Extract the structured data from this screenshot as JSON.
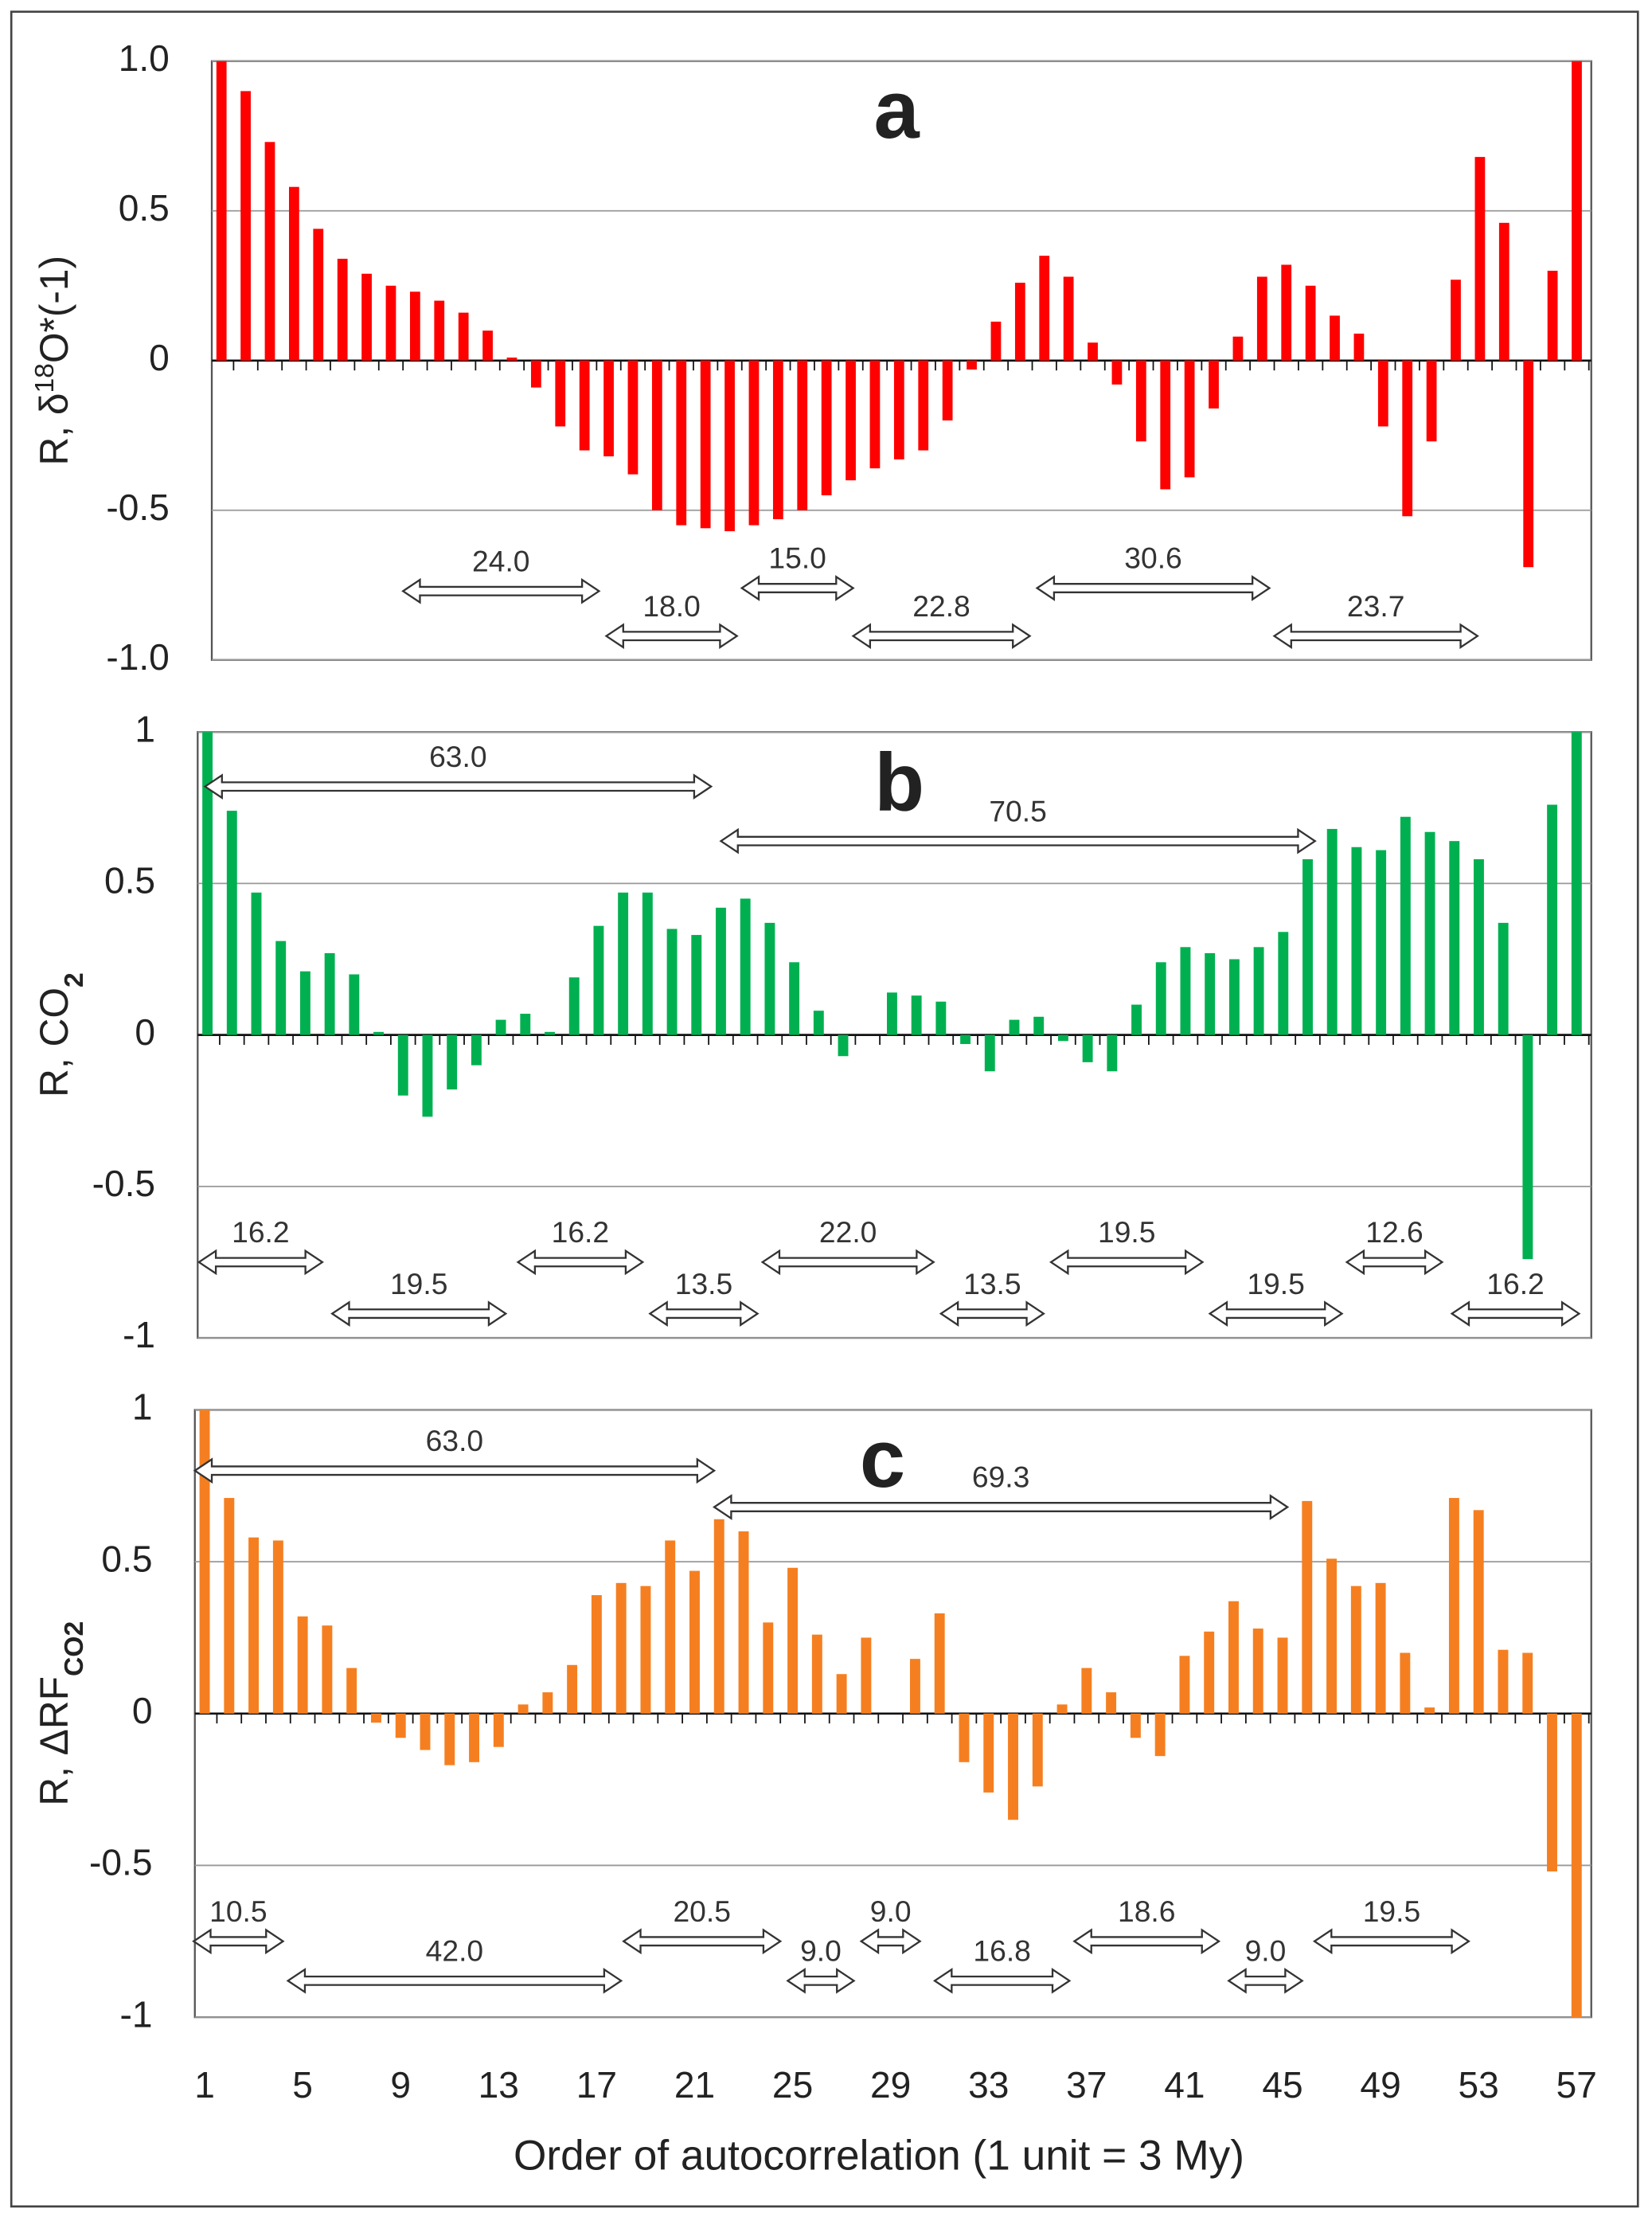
{
  "chart_data": [
    {
      "type": "bar",
      "label": "a",
      "color": "#ff0000",
      "ylabel": [
        "R, δ",
        "18",
        "O*(-1)"
      ],
      "ylabel_shift": [
        "none",
        "super",
        "none"
      ],
      "x": [
        1,
        2,
        3,
        4,
        5,
        6,
        7,
        8,
        9,
        10,
        11,
        12,
        13,
        14,
        15,
        16,
        17,
        18,
        19,
        20,
        21,
        22,
        23,
        24,
        25,
        26,
        27,
        28,
        29,
        30,
        31,
        32,
        33,
        34,
        35,
        36,
        37,
        38,
        39,
        40,
        41,
        42,
        43,
        44,
        45,
        46,
        47,
        48,
        49,
        50,
        51,
        52,
        53,
        54,
        55,
        56,
        57
      ],
      "values": [
        1.0,
        0.9,
        0.73,
        0.58,
        0.44,
        0.34,
        0.29,
        0.25,
        0.23,
        0.2,
        0.16,
        0.1,
        0.01,
        -0.09,
        -0.22,
        -0.3,
        -0.32,
        -0.38,
        -0.5,
        -0.55,
        -0.56,
        -0.57,
        -0.55,
        -0.53,
        -0.5,
        -0.45,
        -0.4,
        -0.36,
        -0.33,
        -0.3,
        -0.2,
        -0.03,
        0.13,
        0.26,
        0.35,
        0.28,
        0.06,
        -0.08,
        -0.27,
        -0.43,
        -0.39,
        -0.16,
        0.08,
        0.28,
        0.32,
        0.25,
        0.15,
        0.09,
        -0.22,
        -0.52,
        -0.27,
        0.27,
        0.68,
        0.46,
        -0.69,
        0.3,
        1.0
      ],
      "xlim": [
        0.6,
        57.6
      ],
      "ylim": [
        -1,
        1
      ],
      "yticks": [
        {
          "value": 1,
          "label": "1.0"
        },
        0.5,
        0,
        -0.5,
        {
          "value": -1,
          "label": "-1.0"
        }
      ],
      "grid": true,
      "annotations": [
        {
          "text": "24.0",
          "x": [
            8.5,
            16.6
          ],
          "y": -0.77
        },
        {
          "text": "18.0",
          "x": [
            16.9,
            22.3
          ],
          "y": -0.92
        },
        {
          "text": "15.0",
          "x": [
            22.5,
            27.1
          ],
          "y": -0.76
        },
        {
          "text": "22.8",
          "x": [
            27.1,
            34.4
          ],
          "y": -0.92
        },
        {
          "text": "30.6",
          "x": [
            34.7,
            44.3
          ],
          "y": -0.76
        },
        {
          "text": "23.7",
          "x": [
            44.5,
            52.9
          ],
          "y": -0.92
        }
      ]
    },
    {
      "type": "bar",
      "label": "b",
      "color": "#00b050",
      "ylabel": [
        "R, CO",
        "2"
      ],
      "ylabel_shift": [
        "none",
        "sub"
      ],
      "x": [
        1,
        2,
        3,
        4,
        5,
        6,
        7,
        8,
        9,
        10,
        11,
        12,
        13,
        14,
        15,
        16,
        17,
        18,
        19,
        20,
        21,
        22,
        23,
        24,
        25,
        26,
        27,
        28,
        29,
        30,
        31,
        32,
        33,
        34,
        35,
        36,
        37,
        38,
        39,
        40,
        41,
        42,
        43,
        44,
        45,
        46,
        47,
        48,
        49,
        50,
        51,
        52,
        53,
        54,
        55,
        56,
        57
      ],
      "values": [
        1.0,
        0.74,
        0.47,
        0.31,
        0.21,
        0.27,
        0.2,
        0.01,
        -0.2,
        -0.27,
        -0.18,
        -0.1,
        0.05,
        0.07,
        0.01,
        0.19,
        0.36,
        0.47,
        0.47,
        0.35,
        0.33,
        0.42,
        0.45,
        0.37,
        0.24,
        0.08,
        -0.07,
        0,
        0.14,
        0.13,
        0.11,
        -0.03,
        -0.12,
        0.05,
        0.06,
        -0.02,
        -0.09,
        -0.12,
        0.1,
        0.24,
        0.29,
        0.27,
        0.25,
        0.29,
        0.34,
        0.58,
        0.68,
        0.62,
        0.61,
        0.72,
        0.67,
        0.64,
        0.58,
        0.37,
        -0.74,
        0.76,
        1.0
      ],
      "xlim": [
        0.6,
        57.6
      ],
      "ylim": [
        -1,
        1
      ],
      "yticks": [
        1,
        0.5,
        0,
        -0.5,
        -1
      ],
      "grid": true,
      "annotations": [
        {
          "text": "63.0",
          "x": [
            0.9,
            21.6
          ],
          "y": 0.82
        },
        {
          "text": "70.5",
          "x": [
            22.0,
            46.3
          ],
          "y": 0.64
        },
        {
          "text": "16.2",
          "x": [
            0.65,
            5.7
          ],
          "y": -0.75
        },
        {
          "text": "19.5",
          "x": [
            6.1,
            13.2
          ],
          "y": -0.92
        },
        {
          "text": "16.2",
          "x": [
            13.7,
            18.8
          ],
          "y": -0.75
        },
        {
          "text": "13.5",
          "x": [
            19.1,
            23.5
          ],
          "y": -0.92
        },
        {
          "text": "22.0",
          "x": [
            23.7,
            30.7
          ],
          "y": -0.75
        },
        {
          "text": "13.5",
          "x": [
            31.0,
            35.2
          ],
          "y": -0.92
        },
        {
          "text": "19.5",
          "x": [
            35.5,
            41.7
          ],
          "y": -0.75
        },
        {
          "text": "19.5",
          "x": [
            42.0,
            47.4
          ],
          "y": -0.92
        },
        {
          "text": "12.6",
          "x": [
            47.6,
            51.5
          ],
          "y": -0.75
        },
        {
          "text": "16.2",
          "x": [
            51.9,
            57.1
          ],
          "y": -0.92
        }
      ]
    },
    {
      "type": "bar",
      "label": "c",
      "color": "#f57f20",
      "ylabel": [
        "R, ΔRF",
        "CO2"
      ],
      "ylabel_shift": [
        "none",
        "sub"
      ],
      "x": [
        1,
        2,
        3,
        4,
        5,
        6,
        7,
        8,
        9,
        10,
        11,
        12,
        13,
        14,
        15,
        16,
        17,
        18,
        19,
        20,
        21,
        22,
        23,
        24,
        25,
        26,
        27,
        28,
        29,
        30,
        31,
        32,
        33,
        34,
        35,
        36,
        37,
        38,
        39,
        40,
        41,
        42,
        43,
        44,
        45,
        46,
        47,
        48,
        49,
        50,
        51,
        52,
        53,
        54,
        55,
        56,
        57
      ],
      "values": [
        1.0,
        0.71,
        0.58,
        0.57,
        0.32,
        0.29,
        0.15,
        -0.03,
        -0.08,
        -0.12,
        -0.17,
        -0.16,
        -0.11,
        0.03,
        0.07,
        0.16,
        0.39,
        0.43,
        0.42,
        0.57,
        0.47,
        0.64,
        0.6,
        0.3,
        0.48,
        0.26,
        0.13,
        0.25,
        0,
        0.18,
        0.33,
        -0.16,
        -0.26,
        -0.35,
        -0.24,
        0.03,
        0.15,
        0.07,
        -0.08,
        -0.14,
        0.19,
        0.27,
        0.37,
        0.28,
        0.25,
        0.7,
        0.51,
        0.42,
        0.43,
        0.2,
        0.02,
        0.71,
        0.67,
        0.21,
        0.2,
        -0.52,
        -1.0
      ],
      "xlim": [
        0.6,
        57.6
      ],
      "ylim": [
        -1,
        1
      ],
      "yticks": [
        1,
        0.5,
        0,
        -0.5,
        -1
      ],
      "xticks": [
        1,
        5,
        9,
        13,
        17,
        21,
        25,
        29,
        33,
        37,
        41,
        45,
        49,
        53,
        57
      ],
      "xlabel": "Order of autocorrelation (1 unit = 3 My)",
      "grid": true,
      "annotations": [
        {
          "text": "63.0",
          "x": [
            0.6,
            21.8
          ],
          "y": 0.8
        },
        {
          "text": "69.3",
          "x": [
            21.8,
            45.2
          ],
          "y": 0.68
        },
        {
          "text": "10.5",
          "x": [
            0.55,
            4.2
          ],
          "y": -0.75
        },
        {
          "text": "42.0",
          "x": [
            4.4,
            18.0
          ],
          "y": -0.88
        },
        {
          "text": "20.5",
          "x": [
            18.1,
            24.5
          ],
          "y": -0.75
        },
        {
          "text": "9.0",
          "x": [
            24.8,
            27.5
          ],
          "y": -0.88
        },
        {
          "text": "9.0",
          "x": [
            27.8,
            30.2
          ],
          "y": -0.75
        },
        {
          "text": "16.8",
          "x": [
            30.8,
            36.3
          ],
          "y": -0.88
        },
        {
          "text": "18.6",
          "x": [
            36.5,
            42.4
          ],
          "y": -0.75
        },
        {
          "text": "9.0",
          "x": [
            42.8,
            45.8
          ],
          "y": -0.88
        },
        {
          "text": "19.5",
          "x": [
            46.3,
            52.6
          ],
          "y": -0.75
        }
      ]
    }
  ]
}
